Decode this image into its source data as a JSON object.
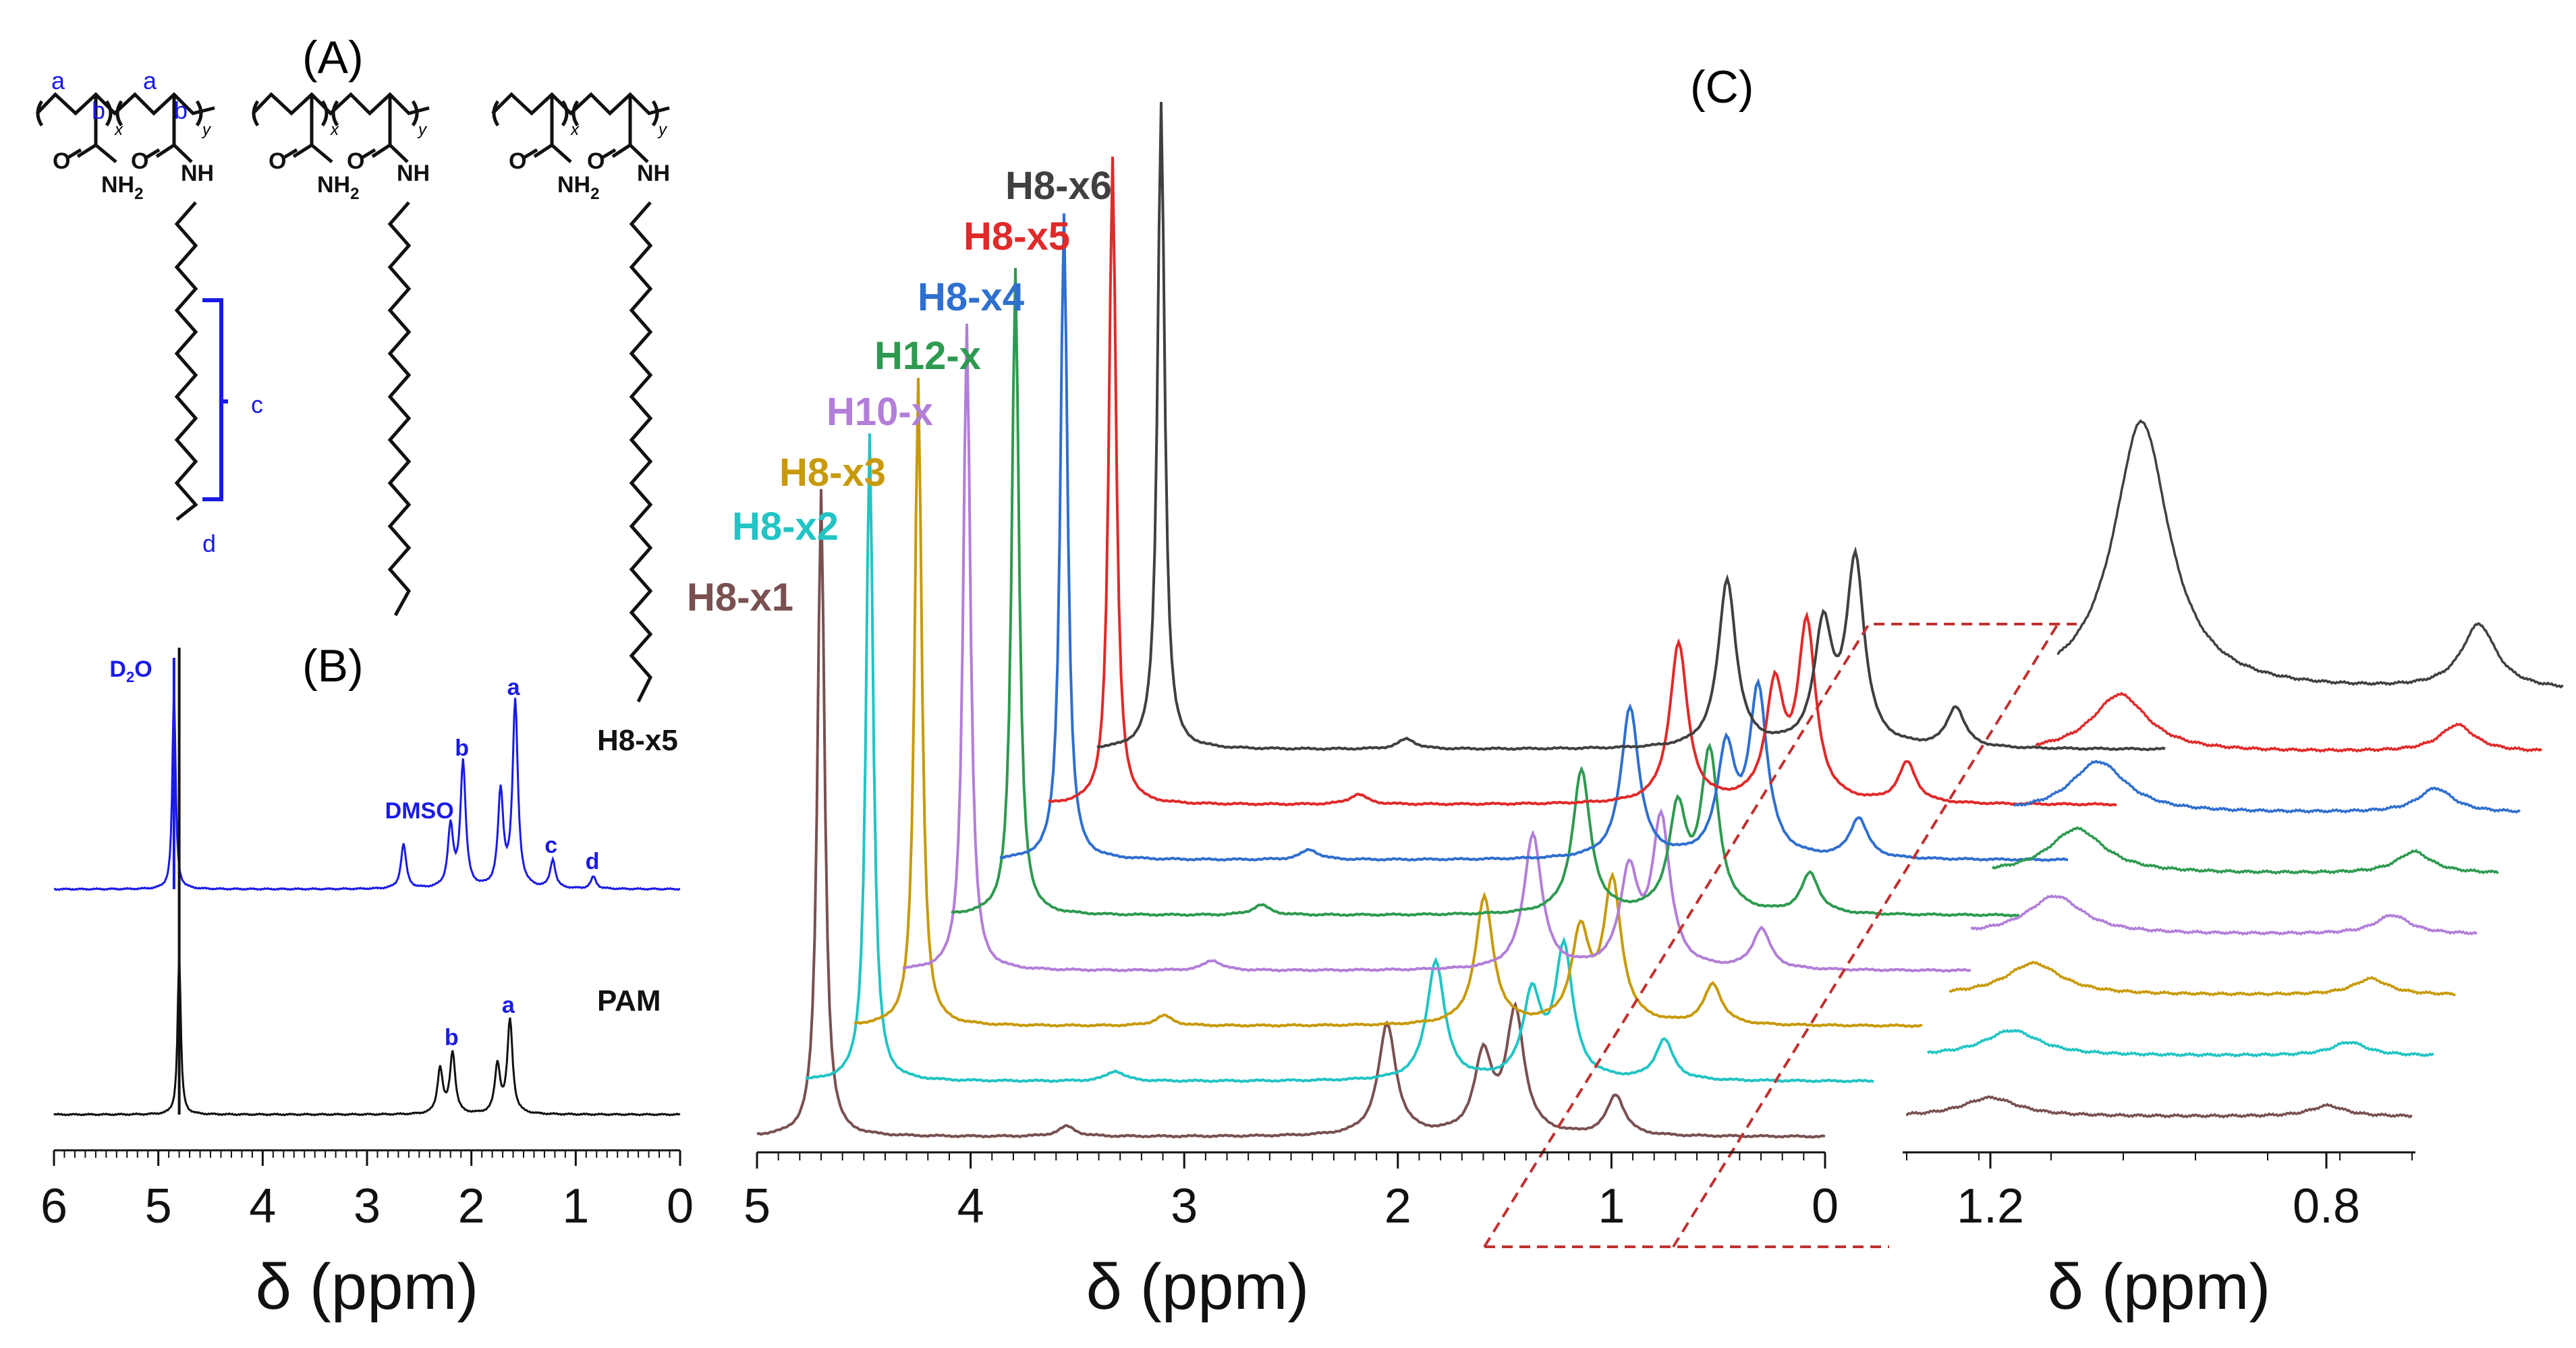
{
  "panels": {
    "a": {
      "label": "(A)"
    },
    "b": {
      "label": "(B)"
    },
    "c": {
      "label": "(C)"
    }
  },
  "structure": {
    "atoms": {
      "nh2": "NH",
      "nh2_sub": "2",
      "nh": "NH",
      "o": "O",
      "x": "x",
      "y": "y"
    },
    "labels": {
      "a": "a",
      "b": "b",
      "c": "c",
      "d": "d"
    }
  },
  "chart_data": [
    {
      "panel": "B",
      "type": "line",
      "xlabel": "δ (ppm)",
      "xlim": [
        6,
        0
      ],
      "xticks": [
        "6",
        "5",
        "4",
        "3",
        "2",
        "1",
        "0"
      ],
      "series": [
        {
          "name": "H8-x5",
          "color": "#1a1ae6",
          "peaks": [
            [
              4.85,
              1.0
            ],
            [
              2.65,
              0.22
            ],
            [
              2.2,
              0.3
            ],
            [
              2.08,
              0.62
            ],
            [
              1.72,
              0.47
            ],
            [
              1.58,
              0.92
            ],
            [
              1.22,
              0.14
            ],
            [
              0.83,
              0.06
            ]
          ],
          "annotations": [
            {
              "text": "D",
              "sub": "2",
              "tail": "O",
              "ppm": 4.95
            },
            {
              "text": "DMSO",
              "ppm": 2.75
            },
            {
              "text": "b",
              "ppm": 2.08
            },
            {
              "text": "a",
              "ppm": 1.58
            },
            {
              "text": "c",
              "ppm": 1.22
            },
            {
              "text": "d",
              "ppm": 0.83
            }
          ]
        },
        {
          "name": "PAM",
          "color": "#111111",
          "peaks": [
            [
              4.8,
              1.0
            ],
            [
              2.3,
              0.28
            ],
            [
              2.18,
              0.38
            ],
            [
              1.75,
              0.3
            ],
            [
              1.63,
              0.58
            ]
          ],
          "annotations": [
            {
              "text": "b",
              "ppm": 2.18
            },
            {
              "text": "a",
              "ppm": 1.63
            }
          ]
        }
      ]
    },
    {
      "panel": "C",
      "type": "line",
      "xlabel": "δ (ppm)",
      "xlim": [
        5,
        0
      ],
      "xticks": [
        "5",
        "4",
        "3",
        "2",
        "1",
        "0"
      ],
      "series": [
        {
          "name": "H8-x1",
          "color": "#7a5050"
        },
        {
          "name": "H8-x2",
          "color": "#22c4c4"
        },
        {
          "name": "H8-x3",
          "color": "#c89a0a"
        },
        {
          "name": "H10-x",
          "color": "#b27ed8"
        },
        {
          "name": "H12-x",
          "color": "#2e9a50"
        },
        {
          "name": "H8-x4",
          "color": "#2f6fcf"
        },
        {
          "name": "H8-x5",
          "color": "#e02a2a"
        },
        {
          "name": "H8-x6",
          "color": "#404040"
        }
      ]
    },
    {
      "panel": "C-inset",
      "type": "line",
      "xlabel": "δ (ppm)",
      "xlim": [
        1.3,
        0.7
      ],
      "xticks": [
        "1.2",
        "0.8"
      ],
      "series": [
        {
          "name": "H8-x1",
          "color": "#7a5050"
        },
        {
          "name": "H8-x2",
          "color": "#22c4c4"
        },
        {
          "name": "H8-x3",
          "color": "#c89a0a"
        },
        {
          "name": "H10-x",
          "color": "#b27ed8"
        },
        {
          "name": "H12-x",
          "color": "#2e9a50"
        },
        {
          "name": "H8-x4",
          "color": "#2f6fcf"
        },
        {
          "name": "H8-x5",
          "color": "#e02a2a"
        },
        {
          "name": "H8-x6",
          "color": "#404040"
        }
      ]
    }
  ]
}
